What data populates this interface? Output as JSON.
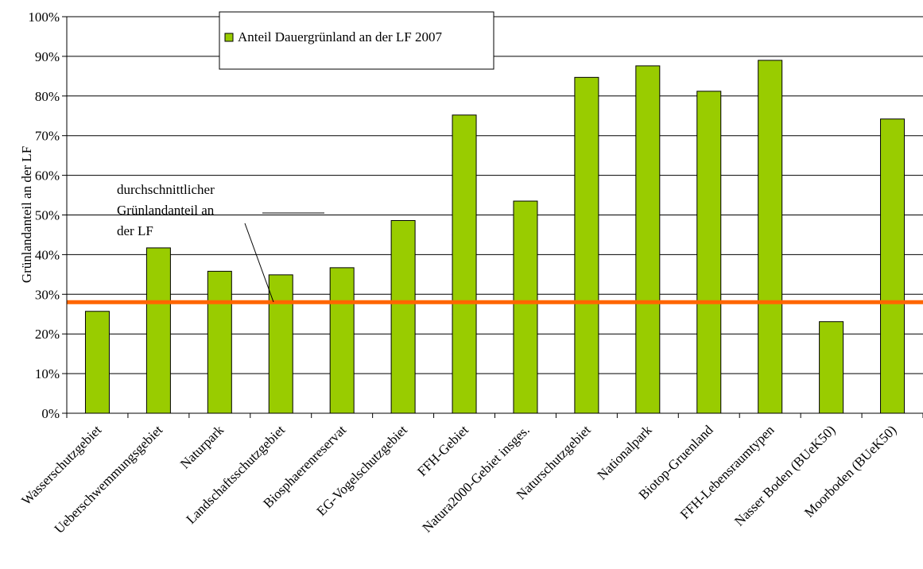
{
  "chart_data": {
    "type": "bar",
    "title": "",
    "xlabel": "",
    "ylabel": "Grünlandanteil an der LF",
    "ylim": [
      0,
      100
    ],
    "ytick_values": [
      0,
      10,
      20,
      30,
      40,
      50,
      60,
      70,
      80,
      90,
      100
    ],
    "ytick_labels": [
      "0%",
      "10%",
      "20%",
      "30%",
      "40%",
      "50%",
      "60%",
      "70%",
      "80%",
      "90%",
      "100%"
    ],
    "categories": [
      "Wasserschutzgebiet",
      "Ueberschwemmungsgebiet",
      "Naturpark",
      "Landschaftsschutzgebiet",
      "Biosphaerenreservat",
      "EG-Vogelschutzgebiet",
      "FFH-Gebiet",
      "Natura2000-Gebiet insges.",
      "Naturschutzgebiet",
      "Nationalpark",
      "Biotop-Gruenland",
      "FFH-Lebensraumtypen",
      "Nasser Boden (BUeK50)",
      "Moorboden (BUeK50)"
    ],
    "series": [
      {
        "name": "Anteil Dauergrünland an der LF 2007",
        "color": "#99cc00",
        "values": [
          25.7,
          41.7,
          35.8,
          34.9,
          36.7,
          48.6,
          75.2,
          53.5,
          84.7,
          87.6,
          81.2,
          89.0,
          23.1,
          74.2
        ]
      }
    ],
    "reference_line": {
      "value": 28,
      "color": "#ff6600",
      "label_lines": [
        "durchschnittlicher",
        "Grünlandanteil an",
        "der LF"
      ]
    },
    "grid": true,
    "legend_position": "top-center"
  }
}
